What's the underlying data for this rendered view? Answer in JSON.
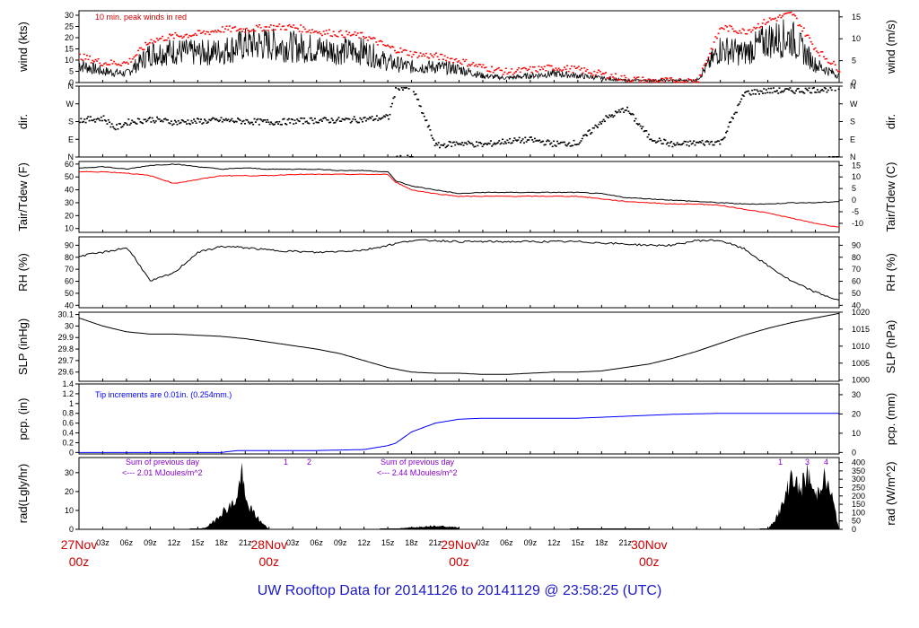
{
  "page": {
    "title": "UW Rooftop Data for 20141126  to  20141129 @ 23:58:25  (UTC)"
  },
  "time_axis": {
    "hour_ticks": [
      "03z",
      "06z",
      "09z",
      "12z",
      "15z",
      "18z",
      "21z"
    ],
    "day_labels": [
      {
        "top": "27Nov",
        "bottom": "00z"
      },
      {
        "top": "28Nov",
        "bottom": "00z"
      },
      {
        "top": "29Nov",
        "bottom": "00z"
      },
      {
        "top": "30Nov",
        "bottom": "00z"
      }
    ]
  },
  "colors": {
    "black": "#000000",
    "red": "#ff0000",
    "blue": "#0000ff",
    "purple": "#8800cc",
    "darkred": "#cc0000",
    "title_blue": "#1a1acc"
  },
  "chart_data": [
    {
      "type": "line",
      "ylabel": "wind (kts)",
      "ylabel_right": "wind (m/s)",
      "ylim": [
        0,
        32
      ],
      "yticks": [
        0,
        5,
        10,
        15,
        20,
        25,
        30
      ],
      "yticks_right": [
        0,
        5,
        10,
        15
      ],
      "annotation": "10 min. peak winds in red",
      "x_hours": [
        0,
        3,
        6,
        9,
        12,
        15,
        18,
        21,
        24,
        27,
        30,
        33,
        36,
        39,
        42,
        45,
        48,
        51,
        54,
        57,
        60,
        63,
        66,
        69,
        72,
        75,
        78,
        81,
        84,
        87,
        90,
        93,
        96
      ],
      "series": [
        {
          "name": "wind",
          "values": [
            8,
            5,
            4,
            13,
            14,
            13,
            14,
            17,
            17,
            16,
            15,
            14,
            14,
            9,
            7,
            7,
            6,
            3,
            2,
            3,
            4,
            3,
            2,
            1,
            1,
            1,
            1,
            15,
            13,
            19,
            20,
            8,
            3
          ]
        },
        {
          "name": "peak",
          "values": [
            12,
            9,
            9,
            19,
            21,
            22,
            24,
            24,
            25,
            25,
            23,
            22,
            21,
            16,
            13,
            12,
            10,
            7,
            5,
            6,
            7,
            6,
            4,
            2,
            1,
            1,
            1,
            25,
            23,
            28,
            31,
            15,
            6
          ]
        }
      ]
    },
    {
      "type": "scatter",
      "ylabel": "dir.",
      "ylabel_right": "dir.",
      "ytick_labels": [
        "N",
        "E",
        "S",
        "W",
        "N"
      ],
      "ylim": [
        0,
        360
      ],
      "x_hours": [
        0,
        3,
        4.5,
        6,
        9,
        12,
        15,
        18,
        21,
        24,
        27,
        30,
        33,
        36,
        39,
        40,
        42,
        45,
        48,
        51,
        54,
        57,
        60,
        63,
        66,
        69,
        72,
        75,
        78,
        81,
        84,
        87,
        90,
        93,
        96
      ],
      "values": [
        190,
        200,
        150,
        180,
        195,
        180,
        185,
        190,
        185,
        180,
        185,
        190,
        190,
        195,
        205,
        360,
        355,
        60,
        75,
        65,
        85,
        90,
        70,
        75,
        190,
        250,
        100,
        65,
        75,
        80,
        330,
        340,
        340,
        345,
        350
      ]
    },
    {
      "type": "line",
      "ylabel": "Tair/Tdew (F)",
      "ylabel_right": "Tair/Tdew (C)",
      "ylim": [
        7,
        62
      ],
      "yticks": [
        10,
        20,
        30,
        40,
        50,
        60
      ],
      "yticks_right": [
        -10,
        -5,
        0,
        5,
        10,
        15
      ],
      "x_hours": [
        0,
        3,
        6,
        9,
        12,
        15,
        18,
        21,
        24,
        27,
        30,
        33,
        36,
        39,
        40,
        42,
        45,
        48,
        51,
        54,
        57,
        60,
        63,
        66,
        69,
        72,
        75,
        78,
        81,
        84,
        87,
        90,
        93,
        96
      ],
      "series": [
        {
          "name": "Tair",
          "values": [
            57,
            58,
            56,
            59,
            60,
            58,
            56,
            57,
            56,
            56,
            56,
            55,
            55,
            54,
            47,
            43,
            40,
            37,
            38,
            38,
            38,
            38,
            38,
            37,
            34,
            33,
            32,
            31,
            30,
            29,
            29,
            30,
            30,
            31
          ]
        },
        {
          "name": "Tdew",
          "values": [
            54,
            54,
            53,
            51,
            45,
            48,
            51,
            51,
            51,
            52,
            52,
            52,
            52,
            52,
            46,
            40,
            37,
            35,
            35,
            35,
            35,
            35,
            35,
            33,
            31,
            30,
            29,
            29,
            28,
            25,
            22,
            18,
            14,
            11
          ]
        }
      ]
    },
    {
      "type": "line",
      "ylabel": "RH (%)",
      "ylabel_right": "RH (%)",
      "ylim": [
        38,
        97
      ],
      "yticks": [
        40,
        50,
        60,
        70,
        80,
        90
      ],
      "yticks_right": [
        40,
        50,
        60,
        70,
        80,
        90
      ],
      "x_hours": [
        0,
        3,
        6,
        7,
        9,
        12,
        15,
        18,
        21,
        24,
        27,
        30,
        33,
        36,
        39,
        42,
        45,
        48,
        51,
        54,
        57,
        60,
        63,
        66,
        69,
        72,
        75,
        78,
        81,
        84,
        87,
        90,
        93,
        96
      ],
      "series": [
        {
          "name": "RH",
          "values": [
            81,
            84,
            88,
            80,
            60,
            67,
            84,
            89,
            88,
            86,
            85,
            84,
            85,
            86,
            90,
            94,
            94,
            93,
            93,
            93,
            93,
            93,
            93,
            92,
            91,
            90,
            90,
            94,
            94,
            87,
            73,
            60,
            51,
            44
          ]
        }
      ]
    },
    {
      "type": "line",
      "ylabel": "SLP (inHg)",
      "ylabel_right": "SLP (hPa)",
      "ylim": [
        29.52,
        30.12
      ],
      "yticks": [
        29.6,
        29.7,
        29.8,
        29.9,
        30.0,
        30.1
      ],
      "yticks_right": [
        1000,
        1005,
        1010,
        1015,
        1020
      ],
      "x_hours": [
        0,
        3,
        6,
        9,
        12,
        15,
        18,
        21,
        24,
        27,
        30,
        33,
        36,
        39,
        42,
        45,
        48,
        51,
        54,
        57,
        60,
        63,
        66,
        69,
        72,
        75,
        78,
        81,
        84,
        87,
        90,
        93,
        96
      ],
      "series": [
        {
          "name": "SLP",
          "values": [
            30.07,
            30.0,
            29.95,
            29.93,
            29.93,
            29.92,
            29.91,
            29.89,
            29.86,
            29.83,
            29.8,
            29.76,
            29.7,
            29.64,
            29.6,
            29.59,
            29.59,
            29.58,
            29.58,
            29.59,
            29.6,
            29.6,
            29.61,
            29.64,
            29.67,
            29.72,
            29.78,
            29.85,
            29.92,
            29.98,
            30.03,
            30.07,
            30.11
          ]
        }
      ]
    },
    {
      "type": "line",
      "ylabel": "pcp. (in)",
      "ylabel_right": "pcp. (mm)",
      "ylim": [
        -0.03,
        1.4
      ],
      "yticks": [
        0.0,
        0.2,
        0.4,
        0.6,
        0.8,
        1.0,
        1.2,
        1.4
      ],
      "yticks_right": [
        0,
        10,
        20,
        30
      ],
      "annotation": "Tip increments are 0.01in. (0.254mm.)",
      "x_hours": [
        0,
        6,
        12,
        18,
        20,
        24,
        30,
        36,
        39,
        40,
        42,
        45,
        48,
        51,
        54,
        57,
        60,
        63,
        66,
        69,
        72,
        75,
        78,
        81,
        84,
        87,
        90,
        93,
        96
      ],
      "series": [
        {
          "name": "pcp",
          "values": [
            0,
            0,
            0,
            0,
            0.04,
            0.04,
            0.04,
            0.06,
            0.14,
            0.19,
            0.42,
            0.6,
            0.68,
            0.7,
            0.7,
            0.7,
            0.7,
            0.7,
            0.72,
            0.74,
            0.76,
            0.78,
            0.79,
            0.8,
            0.8,
            0.8,
            0.8,
            0.8,
            0.8
          ]
        }
      ]
    },
    {
      "type": "area",
      "ylabel": "rad(Lgly/hr)",
      "ylabel_right": "rad (W/m^2)",
      "ylim": [
        0,
        38
      ],
      "yticks": [
        0,
        10,
        20,
        30
      ],
      "yticks_right": [
        0,
        50,
        100,
        150,
        200,
        250,
        300,
        350,
        400
      ],
      "annotations": [
        {
          "text": "Sum of previous day",
          "text2": "<--- 2.01 MJoules/m^2"
        },
        {
          "text": "Sum of previous day",
          "text2": "<--- 2.44 MJoules/m^2"
        },
        {
          "markers": [
            "1",
            "2"
          ]
        },
        {
          "markers": [
            "1",
            "3",
            "4"
          ]
        }
      ],
      "x_hours": [
        0,
        15,
        16,
        17,
        18,
        19,
        20,
        20.5,
        21,
        22,
        23,
        24,
        30,
        39,
        42,
        45,
        48,
        60,
        63,
        64,
        65,
        66,
        67,
        68,
        69,
        70,
        71,
        72
      ],
      "series": [
        {
          "name": "rad",
          "values": [
            0,
            0,
            1,
            4,
            9,
            12,
            16,
            33,
            15,
            9,
            4,
            0,
            0,
            0,
            1,
            2,
            1,
            0,
            0,
            6,
            14,
            30,
            20,
            30,
            17,
            28,
            19,
            0
          ]
        }
      ]
    }
  ]
}
